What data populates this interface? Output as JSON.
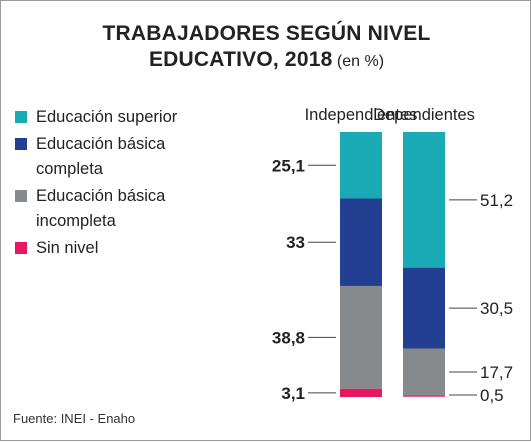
{
  "title": {
    "line1": "TRABAJADORES SEGÚN NIVEL",
    "line2": "EDUCATIVO, 2018",
    "unit": "(en %)"
  },
  "source": "Fuente: INEI - Enaho",
  "legend": [
    {
      "label": "Educación superior",
      "color": "#19aab5"
    },
    {
      "label": "Educación básica completa",
      "color": "#223f91"
    },
    {
      "label": "Educación básica incompleta",
      "color": "#878a8d"
    },
    {
      "label": "Sin nivel",
      "color": "#e8185f"
    }
  ],
  "chart_data": {
    "type": "bar",
    "stacked": true,
    "categories": [
      "Independientes",
      "Dependientes"
    ],
    "series": [
      {
        "name": "Educación superior",
        "color": "#19aab5",
        "values": [
          25.1,
          51.2
        ]
      },
      {
        "name": "Educación básica completa",
        "color": "#223f91",
        "values": [
          33,
          30.5
        ]
      },
      {
        "name": "Educación básica incompleta",
        "color": "#878a8d",
        "values": [
          38.8,
          17.7
        ]
      },
      {
        "name": "Sin nivel",
        "color": "#e8185f",
        "values": [
          3.1,
          0.5
        ]
      }
    ],
    "labels": [
      [
        "25,1",
        "33",
        "38,8",
        "3,1"
      ],
      [
        "51,2",
        "30,5",
        "17,7",
        "0,5"
      ]
    ],
    "label_side": [
      "left",
      "right"
    ],
    "label_bold": [
      true,
      false
    ],
    "ylim": [
      0,
      100
    ]
  }
}
